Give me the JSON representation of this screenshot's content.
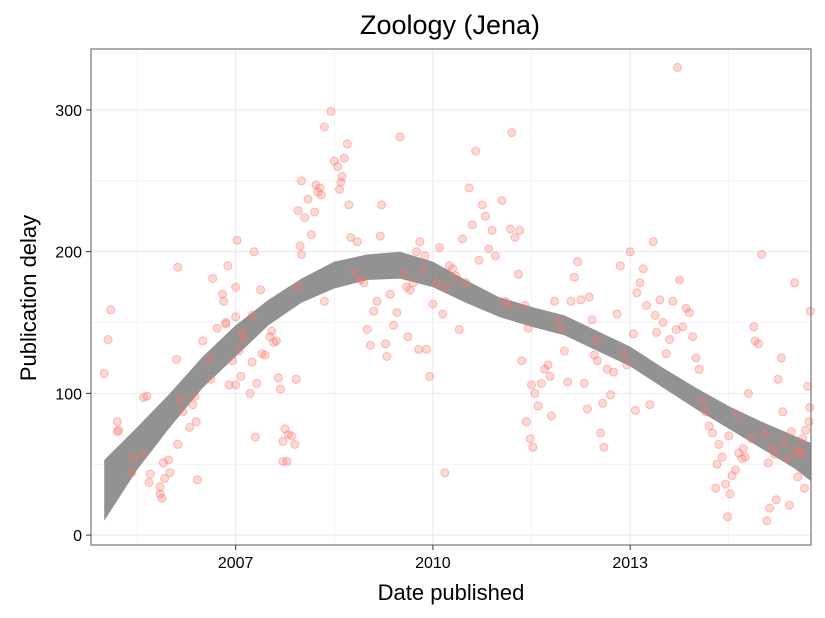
{
  "chart_data": {
    "type": "scatter",
    "title": "Zoology (Jena)",
    "xlabel": "Date published",
    "ylabel": "Publication delay",
    "x_axis": "date (years)",
    "xlim": [
      2004.8,
      2015.75
    ],
    "ylim": [
      -7,
      343
    ],
    "x_ticks": [
      2007,
      2010,
      2013
    ],
    "x_tick_labels": [
      "2007",
      "2010",
      "2013"
    ],
    "y_ticks": [
      0,
      100,
      200,
      300
    ],
    "y_tick_labels": [
      "0",
      "100",
      "200",
      "300"
    ],
    "grid": true,
    "legend": "none",
    "colors": {
      "points": "#f8766d",
      "smooth_band": "#7f7f7f",
      "grid": "#ebebeb",
      "panel_border": "#7f7f7f"
    },
    "points": [
      [
        2005.0,
        114
      ],
      [
        2005.06,
        138
      ],
      [
        2005.1,
        159
      ],
      [
        2005.2,
        80
      ],
      [
        2005.2,
        73
      ],
      [
        2005.22,
        74
      ],
      [
        2005.42,
        44
      ],
      [
        2005.45,
        54
      ],
      [
        2005.6,
        57
      ],
      [
        2005.6,
        97
      ],
      [
        2005.65,
        98
      ],
      [
        2005.68,
        37
      ],
      [
        2005.7,
        43
      ],
      [
        2005.85,
        34
      ],
      [
        2005.85,
        29
      ],
      [
        2005.88,
        26
      ],
      [
        2005.9,
        51
      ],
      [
        2005.92,
        40
      ],
      [
        2005.98,
        53
      ],
      [
        2006.0,
        44
      ],
      [
        2006.1,
        124
      ],
      [
        2006.12,
        189
      ],
      [
        2006.12,
        64
      ],
      [
        2006.15,
        96
      ],
      [
        2006.2,
        87
      ],
      [
        2006.3,
        76
      ],
      [
        2006.35,
        92
      ],
      [
        2006.38,
        98
      ],
      [
        2006.4,
        80
      ],
      [
        2006.42,
        39
      ],
      [
        2006.5,
        137
      ],
      [
        2006.6,
        125
      ],
      [
        2006.62,
        110
      ],
      [
        2006.65,
        181
      ],
      [
        2006.72,
        146
      ],
      [
        2006.8,
        170
      ],
      [
        2006.82,
        165
      ],
      [
        2006.85,
        149
      ],
      [
        2006.85,
        150
      ],
      [
        2006.88,
        190
      ],
      [
        2006.9,
        106
      ],
      [
        2006.95,
        123
      ],
      [
        2007.0,
        154
      ],
      [
        2007.0,
        175
      ],
      [
        2007.0,
        106
      ],
      [
        2007.02,
        208
      ],
      [
        2007.05,
        130
      ],
      [
        2007.08,
        112
      ],
      [
        2007.1,
        143
      ],
      [
        2007.12,
        138
      ],
      [
        2007.22,
        100
      ],
      [
        2007.25,
        122
      ],
      [
        2007.25,
        155
      ],
      [
        2007.28,
        200
      ],
      [
        2007.3,
        69
      ],
      [
        2007.32,
        107
      ],
      [
        2007.38,
        173
      ],
      [
        2007.4,
        128
      ],
      [
        2007.45,
        127
      ],
      [
        2007.52,
        140
      ],
      [
        2007.55,
        144
      ],
      [
        2007.58,
        136
      ],
      [
        2007.62,
        137
      ],
      [
        2007.65,
        111
      ],
      [
        2007.68,
        103
      ],
      [
        2007.72,
        52
      ],
      [
        2007.72,
        66
      ],
      [
        2007.75,
        75
      ],
      [
        2007.78,
        52
      ],
      [
        2007.8,
        71
      ],
      [
        2007.85,
        70
      ],
      [
        2007.9,
        64
      ],
      [
        2007.92,
        110
      ],
      [
        2007.95,
        175
      ],
      [
        2007.95,
        229
      ],
      [
        2007.98,
        204
      ],
      [
        2008.0,
        198
      ],
      [
        2008.0,
        250
      ],
      [
        2008.05,
        224
      ],
      [
        2008.1,
        237
      ],
      [
        2008.15,
        212
      ],
      [
        2008.2,
        228
      ],
      [
        2008.22,
        247
      ],
      [
        2008.25,
        242
      ],
      [
        2008.28,
        245
      ],
      [
        2008.3,
        240
      ],
      [
        2008.35,
        165
      ],
      [
        2008.35,
        288
      ],
      [
        2008.45,
        299
      ],
      [
        2008.5,
        264
      ],
      [
        2008.55,
        260
      ],
      [
        2008.58,
        244
      ],
      [
        2008.6,
        249
      ],
      [
        2008.62,
        253
      ],
      [
        2008.65,
        266
      ],
      [
        2008.7,
        276
      ],
      [
        2008.72,
        233
      ],
      [
        2008.75,
        210
      ],
      [
        2008.8,
        186
      ],
      [
        2008.85,
        207
      ],
      [
        2008.9,
        180
      ],
      [
        2008.95,
        178
      ],
      [
        2009.0,
        145
      ],
      [
        2009.05,
        134
      ],
      [
        2009.1,
        158
      ],
      [
        2009.15,
        165
      ],
      [
        2009.2,
        211
      ],
      [
        2009.22,
        233
      ],
      [
        2009.28,
        135
      ],
      [
        2009.3,
        126
      ],
      [
        2009.35,
        170
      ],
      [
        2009.4,
        148
      ],
      [
        2009.45,
        157
      ],
      [
        2009.5,
        281
      ],
      [
        2009.55,
        184
      ],
      [
        2009.6,
        175
      ],
      [
        2009.62,
        140
      ],
      [
        2009.65,
        173
      ],
      [
        2009.7,
        178
      ],
      [
        2009.75,
        200
      ],
      [
        2009.78,
        131
      ],
      [
        2009.8,
        207
      ],
      [
        2009.85,
        187
      ],
      [
        2009.88,
        197
      ],
      [
        2009.9,
        131
      ],
      [
        2009.95,
        112
      ],
      [
        2010.0,
        163
      ],
      [
        2010.05,
        178
      ],
      [
        2010.1,
        203
      ],
      [
        2010.15,
        156
      ],
      [
        2010.18,
        44
      ],
      [
        2010.2,
        175
      ],
      [
        2010.25,
        190
      ],
      [
        2010.3,
        188
      ],
      [
        2010.35,
        183
      ],
      [
        2010.4,
        145
      ],
      [
        2010.45,
        209
      ],
      [
        2010.5,
        178
      ],
      [
        2010.55,
        245
      ],
      [
        2010.6,
        219
      ],
      [
        2010.65,
        271
      ],
      [
        2010.7,
        194
      ],
      [
        2010.75,
        233
      ],
      [
        2010.8,
        225
      ],
      [
        2010.85,
        202
      ],
      [
        2010.9,
        215
      ],
      [
        2010.95,
        197
      ],
      [
        2011.05,
        236
      ],
      [
        2011.1,
        165
      ],
      [
        2011.15,
        162
      ],
      [
        2011.18,
        216
      ],
      [
        2011.2,
        284
      ],
      [
        2011.25,
        210
      ],
      [
        2011.3,
        184
      ],
      [
        2011.32,
        215
      ],
      [
        2011.35,
        123
      ],
      [
        2011.4,
        162
      ],
      [
        2011.42,
        80
      ],
      [
        2011.45,
        146
      ],
      [
        2011.48,
        68
      ],
      [
        2011.5,
        106
      ],
      [
        2011.52,
        62
      ],
      [
        2011.55,
        100
      ],
      [
        2011.6,
        91
      ],
      [
        2011.65,
        107
      ],
      [
        2011.7,
        117
      ],
      [
        2011.75,
        120
      ],
      [
        2011.78,
        112
      ],
      [
        2011.8,
        84
      ],
      [
        2011.85,
        165
      ],
      [
        2011.9,
        151
      ],
      [
        2011.95,
        146
      ],
      [
        2012.0,
        130
      ],
      [
        2012.05,
        108
      ],
      [
        2012.1,
        165
      ],
      [
        2012.15,
        182
      ],
      [
        2012.2,
        193
      ],
      [
        2012.25,
        166
      ],
      [
        2012.3,
        107
      ],
      [
        2012.35,
        89
      ],
      [
        2012.38,
        168
      ],
      [
        2012.42,
        152
      ],
      [
        2012.45,
        127
      ],
      [
        2012.48,
        138
      ],
      [
        2012.5,
        123
      ],
      [
        2012.55,
        72
      ],
      [
        2012.58,
        93
      ],
      [
        2012.6,
        62
      ],
      [
        2012.65,
        117
      ],
      [
        2012.7,
        99
      ],
      [
        2012.75,
        115
      ],
      [
        2012.8,
        156
      ],
      [
        2012.85,
        190
      ],
      [
        2012.9,
        128
      ],
      [
        2012.95,
        120
      ],
      [
        2013.0,
        200
      ],
      [
        2013.05,
        142
      ],
      [
        2013.08,
        88
      ],
      [
        2013.1,
        171
      ],
      [
        2013.15,
        178
      ],
      [
        2013.2,
        188
      ],
      [
        2013.25,
        162
      ],
      [
        2013.3,
        92
      ],
      [
        2013.35,
        207
      ],
      [
        2013.38,
        155
      ],
      [
        2013.4,
        143
      ],
      [
        2013.45,
        166
      ],
      [
        2013.5,
        150
      ],
      [
        2013.55,
        128
      ],
      [
        2013.6,
        138
      ],
      [
        2013.65,
        165
      ],
      [
        2013.7,
        145
      ],
      [
        2013.72,
        330
      ],
      [
        2013.75,
        180
      ],
      [
        2013.8,
        147
      ],
      [
        2013.85,
        160
      ],
      [
        2013.9,
        157
      ],
      [
        2013.95,
        140
      ],
      [
        2014.0,
        125
      ],
      [
        2014.05,
        117
      ],
      [
        2014.1,
        95
      ],
      [
        2014.15,
        87
      ],
      [
        2014.2,
        77
      ],
      [
        2014.25,
        72
      ],
      [
        2014.3,
        33
      ],
      [
        2014.32,
        50
      ],
      [
        2014.35,
        64
      ],
      [
        2014.4,
        55
      ],
      [
        2014.45,
        36
      ],
      [
        2014.48,
        13
      ],
      [
        2014.5,
        70
      ],
      [
        2014.52,
        29
      ],
      [
        2014.55,
        42
      ],
      [
        2014.6,
        46
      ],
      [
        2014.62,
        85
      ],
      [
        2014.65,
        58
      ],
      [
        2014.7,
        54
      ],
      [
        2014.72,
        61
      ],
      [
        2014.75,
        55
      ],
      [
        2014.8,
        100
      ],
      [
        2014.85,
        68
      ],
      [
        2014.88,
        147
      ],
      [
        2014.9,
        137
      ],
      [
        2014.95,
        135
      ],
      [
        2015.0,
        198
      ],
      [
        2015.05,
        71
      ],
      [
        2015.08,
        10
      ],
      [
        2015.1,
        51
      ],
      [
        2015.12,
        19
      ],
      [
        2015.15,
        62
      ],
      [
        2015.2,
        57
      ],
      [
        2015.22,
        25
      ],
      [
        2015.25,
        110
      ],
      [
        2015.3,
        125
      ],
      [
        2015.32,
        87
      ],
      [
        2015.35,
        65
      ],
      [
        2015.4,
        54
      ],
      [
        2015.42,
        21
      ],
      [
        2015.45,
        73
      ],
      [
        2015.5,
        178
      ],
      [
        2015.52,
        60
      ],
      [
        2015.55,
        41
      ],
      [
        2015.58,
        59
      ],
      [
        2015.6,
        57
      ],
      [
        2015.62,
        68
      ],
      [
        2015.65,
        33
      ],
      [
        2015.67,
        74
      ],
      [
        2015.7,
        105
      ],
      [
        2015.72,
        80
      ],
      [
        2015.73,
        90
      ],
      [
        2015.74,
        158
      ]
    ],
    "smooth_band": {
      "x": [
        2005.0,
        2005.5,
        2006.0,
        2006.5,
        2007.0,
        2007.5,
        2008.0,
        2008.5,
        2009.0,
        2009.5,
        2010.0,
        2010.5,
        2011.0,
        2011.5,
        2012.0,
        2012.5,
        2013.0,
        2013.5,
        2014.0,
        2014.5,
        2015.0,
        2015.5,
        2015.75
      ],
      "lower": [
        10,
        46,
        76,
        104,
        126,
        148,
        164,
        174,
        180,
        181,
        175,
        164,
        154,
        147,
        141,
        130,
        119,
        104,
        89,
        75,
        61,
        47,
        38
      ],
      "upper": [
        53,
        76,
        100,
        126,
        148,
        166,
        181,
        193,
        198,
        200,
        193,
        180,
        168,
        161,
        155,
        144,
        133,
        118,
        104,
        91,
        80,
        70,
        65
      ]
    }
  }
}
